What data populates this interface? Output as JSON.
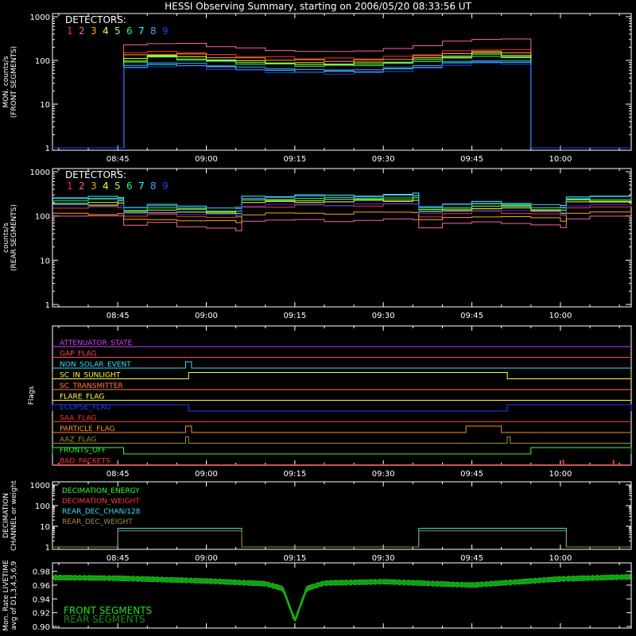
{
  "title": "HESSI Observing Summary, starting on 2006/05/20 08:33:56 UT",
  "time_ticks": [
    "08:45",
    "09:00",
    "09:15",
    "09:30",
    "09:45",
    "10:00"
  ],
  "detectors_label": "DETECTORS:",
  "detector_colors": [
    "#ff3030",
    "#ff60a0",
    "#ffa020",
    "#ffff40",
    "#a0ff40",
    "#20ff60",
    "#30ffff",
    "#40a0ff",
    "#2040ff"
  ],
  "chart_data": [
    {
      "type": "line",
      "name": "front",
      "ylabel": [
        "MON. counts/s",
        "(FRONT SEGMENTS)"
      ],
      "yscale": "log",
      "ylim": [
        1,
        1000
      ],
      "ytick_labels": [
        "1",
        "10",
        "100",
        "1000"
      ],
      "xlim": [
        "08:33:56",
        "10:12:00"
      ],
      "legend_title": "DETECTORS:",
      "legend": [
        "1",
        "2",
        "3",
        "4",
        "5",
        "6",
        "7",
        "8",
        "9"
      ],
      "active_interval": [
        "08:46:00",
        "09:55:00"
      ],
      "x": [
        "08:46",
        "08:50",
        "08:55",
        "09:00",
        "09:05",
        "09:10",
        "09:15",
        "09:20",
        "09:25",
        "09:30",
        "09:35",
        "09:40",
        "09:45",
        "09:50",
        "09:55"
      ],
      "series": [
        {
          "name": "1",
          "values": [
            150,
            160,
            150,
            135,
            125,
            118,
            112,
            110,
            112,
            120,
            140,
            160,
            180,
            170,
            155
          ]
        },
        {
          "name": "2",
          "values": [
            220,
            250,
            240,
            210,
            190,
            170,
            160,
            160,
            165,
            185,
            220,
            270,
            310,
            300,
            260
          ]
        },
        {
          "name": "3",
          "values": [
            130,
            140,
            135,
            120,
            110,
            105,
            100,
            98,
            100,
            108,
            125,
            145,
            160,
            150,
            135
          ]
        },
        {
          "name": "4",
          "values": [
            110,
            130,
            120,
            105,
            96,
            90,
            86,
            85,
            88,
            95,
            110,
            130,
            145,
            135,
            120
          ]
        },
        {
          "name": "5",
          "values": [
            100,
            120,
            110,
            98,
            90,
            85,
            80,
            80,
            82,
            88,
            102,
            120,
            135,
            125,
            110
          ]
        },
        {
          "name": "6",
          "values": [
            95,
            115,
            105,
            92,
            85,
            80,
            76,
            75,
            78,
            84,
            96,
            112,
            125,
            115,
            102
          ]
        },
        {
          "name": "7",
          "values": [
            70,
            80,
            78,
            70,
            63,
            58,
            56,
            55,
            57,
            62,
            72,
            85,
            95,
            88,
            78
          ]
        },
        {
          "name": "8",
          "values": [
            75,
            90,
            85,
            76,
            70,
            65,
            62,
            60,
            62,
            68,
            78,
            92,
            102,
            95,
            85
          ]
        },
        {
          "name": "9",
          "values": [
            65,
            75,
            72,
            65,
            58,
            54,
            52,
            50,
            52,
            57,
            66,
            78,
            88,
            82,
            72
          ]
        }
      ]
    },
    {
      "type": "line",
      "name": "rear",
      "ylabel": [
        "counts/s",
        "(REAR SEGMENTS)"
      ],
      "yscale": "log",
      "ylim": [
        1,
        1000
      ],
      "ytick_labels": [
        "1",
        "10",
        "100",
        "1000"
      ],
      "xlim": [
        "08:33:56",
        "10:12:00"
      ],
      "legend_title": "DETECTORS:",
      "legend": [
        "1",
        "2",
        "3",
        "4",
        "5",
        "6",
        "7",
        "8",
        "9"
      ],
      "x": [
        "08:34",
        "08:40",
        "08:45",
        "08:46",
        "08:50",
        "08:55",
        "09:00",
        "09:05",
        "09:06",
        "09:10",
        "09:15",
        "09:20",
        "09:25",
        "09:30",
        "09:35",
        "09:36",
        "09:40",
        "09:45",
        "09:50",
        "09:55",
        "10:00",
        "10:01",
        "10:05",
        "10:12"
      ],
      "series": [
        {
          "name": "1",
          "values": [
            150,
            155,
            160,
            100,
            105,
            100,
            95,
            90,
            160,
            165,
            170,
            170,
            175,
            180,
            185,
            100,
            110,
            125,
            120,
            110,
            100,
            160,
            160,
            155
          ]
        },
        {
          "name": "2",
          "values": [
            95,
            100,
            105,
            60,
            70,
            60,
            52,
            45,
            80,
            80,
            80,
            78,
            80,
            82,
            85,
            55,
            65,
            75,
            70,
            60,
            55,
            90,
            95,
            95
          ]
        },
        {
          "name": "3",
          "values": [
            110,
            112,
            115,
            80,
            85,
            80,
            75,
            72,
            110,
            112,
            115,
            115,
            118,
            120,
            125,
            80,
            90,
            100,
            95,
            88,
            80,
            115,
            118,
            120
          ]
        },
        {
          "name": "4",
          "values": [
            180,
            185,
            190,
            115,
            125,
            120,
            112,
            105,
            200,
            205,
            210,
            210,
            215,
            220,
            230,
            120,
            135,
            150,
            145,
            132,
            120,
            200,
            205,
            200
          ]
        },
        {
          "name": "5",
          "values": [
            200,
            205,
            210,
            130,
            140,
            135,
            125,
            118,
            220,
            225,
            230,
            230,
            235,
            240,
            250,
            135,
            150,
            165,
            160,
            145,
            135,
            220,
            225,
            220
          ]
        },
        {
          "name": "6",
          "values": [
            230,
            235,
            240,
            140,
            150,
            145,
            135,
            128,
            240,
            245,
            250,
            252,
            255,
            260,
            270,
            145,
            160,
            180,
            175,
            160,
            145,
            240,
            245,
            240
          ]
        },
        {
          "name": "7",
          "values": [
            260,
            265,
            270,
            160,
            175,
            170,
            158,
            150,
            280,
            285,
            290,
            292,
            295,
            300,
            320,
            170,
            185,
            205,
            200,
            180,
            165,
            280,
            285,
            280
          ]
        },
        {
          "name": "8",
          "values": [
            240,
            245,
            250,
            150,
            165,
            160,
            150,
            140,
            260,
            265,
            270,
            272,
            275,
            280,
            295,
            160,
            175,
            195,
            190,
            172,
            155,
            260,
            265,
            260
          ]
        },
        {
          "name": "9",
          "values": [
            170,
            172,
            175,
            110,
            118,
            112,
            105,
            100,
            175,
            178,
            180,
            180,
            182,
            185,
            195,
            112,
            122,
            138,
            132,
            120,
            110,
            170,
            172,
            170
          ]
        }
      ]
    },
    {
      "type": "line",
      "name": "flags",
      "ylabel": [
        "Flags"
      ],
      "xlim": [
        "08:33:56",
        "10:12:00"
      ],
      "flags": [
        {
          "label": "ATTENUATOR_STATE",
          "color": "#d040ff",
          "segments": []
        },
        {
          "label": "GAP_FLAG",
          "color": "#ff4060",
          "segments": []
        },
        {
          "label": "NON_SOLAR_EVENT",
          "color": "#30e0ff",
          "segments": [
            [
              "08:56:30",
              "08:57:30"
            ]
          ]
        },
        {
          "label": "SC_IN_SUNLIGHT",
          "color": "#ffff40",
          "segments": [
            [
              "08:33:56",
              "08:57:00"
            ],
            [
              "09:51:00",
              "10:12:00"
            ]
          ],
          "invert": true
        },
        {
          "label": "SC_TRANSMITTER",
          "color": "#ff8040",
          "segments": []
        },
        {
          "label": "FLARE_FLAG",
          "color": "#ffff40",
          "segments": []
        },
        {
          "label": "ECLIPSE_FLAG",
          "color": "#2040ff",
          "segments": [
            [
              "08:33:56",
              "08:57:00"
            ],
            [
              "09:51:00",
              "10:12:00"
            ]
          ]
        },
        {
          "label": "SAA_FLAG",
          "color": "#ff3030",
          "segments": []
        },
        {
          "label": "PARTICLE_FLAG",
          "color": "#ff9030",
          "segments": [
            [
              "08:56:30",
              "08:57:30"
            ],
            [
              "09:44:00",
              "09:50:00"
            ]
          ]
        },
        {
          "label": "AAZ_FLAG",
          "color": "#a09030",
          "segments": [
            [
              "08:56:30",
              "08:57:00"
            ],
            [
              "09:51:00",
              "09:51:30"
            ]
          ]
        },
        {
          "label": "FRONTS_OFF",
          "color": "#30ff40",
          "segments": [
            [
              "08:33:56",
              "08:46:00"
            ],
            [
              "09:55:00",
              "10:12:00"
            ]
          ]
        },
        {
          "label": "BAD_PACKETS",
          "color": "#ff3030",
          "segments": [
            [
              "10:00:30",
              "10:00:35"
            ],
            [
              "10:09:00",
              "10:09:05"
            ]
          ],
          "spikes": true
        }
      ]
    },
    {
      "type": "line",
      "name": "decimation",
      "ylabel": [
        "DECIMATION",
        "CHANNEL or weight"
      ],
      "yscale": "log",
      "ylim": [
        1,
        1000
      ],
      "ytick_labels": [
        "1",
        "10",
        "100",
        "1000"
      ],
      "xlim": [
        "08:33:56",
        "10:12:00"
      ],
      "legend": [
        {
          "label": "DECIMATION_ENERGY",
          "color": "#30ff40"
        },
        {
          "label": "DECIMATION_WEIGHT",
          "color": "#ff4040"
        },
        {
          "label": "REAR_DEC_CHAN/128",
          "color": "#30e0ff"
        },
        {
          "label": "REAR_DEC_WEIGHT",
          "color": "#a09030"
        }
      ],
      "series": [
        {
          "name": "REAR_DEC_CHAN/128",
          "x": [
            "08:33:56",
            "08:45:00",
            "08:45:00",
            "09:06:00",
            "09:06:00",
            "09:36:00",
            "09:36:00",
            "10:01:00",
            "10:01:00",
            "10:12:00"
          ],
          "values": [
            1,
            1,
            8,
            8,
            1,
            1,
            8,
            8,
            1,
            1
          ]
        },
        {
          "name": "REAR_DEC_WEIGHT",
          "x": [
            "08:33:56",
            "08:45:00",
            "08:45:00",
            "09:06:00",
            "09:06:00",
            "09:36:00",
            "09:36:00",
            "10:01:00",
            "10:01:00",
            "10:12:00"
          ],
          "values": [
            1,
            1,
            6,
            6,
            1,
            1,
            6,
            6,
            1,
            1
          ]
        }
      ]
    },
    {
      "type": "area",
      "name": "livetime",
      "ylabel": [
        "Mon. Rate LIVETIME",
        "avg of D1,3,4,5,6,9"
      ],
      "ylim": [
        0.9,
        0.99
      ],
      "ytick_labels": [
        "0.90",
        "0.92",
        "0.94",
        "0.96",
        "0.98"
      ],
      "xlim": [
        "08:33:56",
        "10:12:00"
      ],
      "legend": [
        {
          "label": "FRONT SEGMENTS",
          "color": "#20e020"
        },
        {
          "label": "REAR SEGMENTS",
          "color": "#109010"
        }
      ],
      "x": [
        "08:34",
        "08:45",
        "09:00",
        "09:10",
        "09:13",
        "09:15",
        "09:17",
        "09:20",
        "09:30",
        "09:45",
        "10:00",
        "10:12"
      ],
      "values": [
        0.971,
        0.97,
        0.966,
        0.962,
        0.955,
        0.908,
        0.955,
        0.963,
        0.965,
        0.96,
        0.969,
        0.972
      ]
    }
  ]
}
